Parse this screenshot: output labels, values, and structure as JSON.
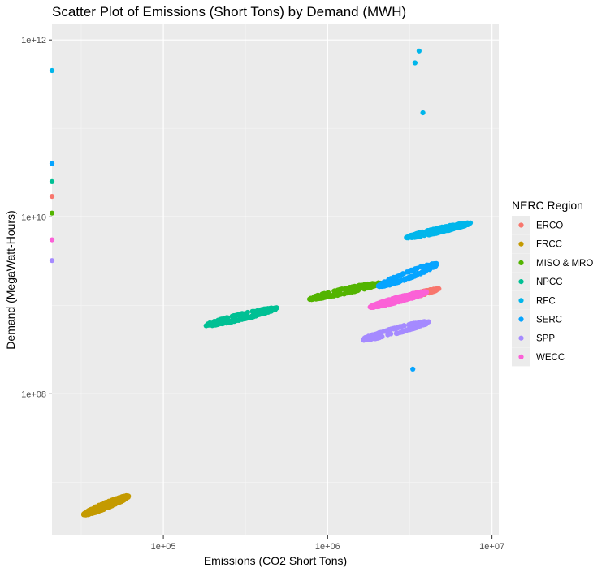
{
  "chart_data": {
    "type": "scatter",
    "title": "Scatter Plot of Emissions (Short Tons) by Demand (MWH)",
    "xlabel": "Emissions (CO2 Short Tons)",
    "ylabel": "Demand (MegaWatt-Hours)",
    "x_scale": "log10",
    "y_scale": "log10",
    "xlim": [
      21000,
      11000000
    ],
    "ylim": [
      2500000,
      1500000000000
    ],
    "x_ticks": [
      {
        "value": 100000,
        "label": "1e+05"
      },
      {
        "value": 1000000,
        "label": "1e+06"
      },
      {
        "value": 10000000,
        "label": "1e+07"
      }
    ],
    "y_ticks": [
      {
        "value": 100000000,
        "label": "1e+08"
      },
      {
        "value": 10000000000,
        "label": "1e+10"
      },
      {
        "value": 1000000000000,
        "label": "1e+12"
      }
    ],
    "grid": true,
    "legend": {
      "title": "NERC Region",
      "position": "right",
      "entries": [
        {
          "label": "ERCO",
          "color": "#F8766D"
        },
        {
          "label": "FRCC",
          "color": "#C49A00"
        },
        {
          "label": "MISO & MRO",
          "color": "#53B400"
        },
        {
          "label": "NPCC",
          "color": "#00C094"
        },
        {
          "label": "RFC",
          "color": "#00B6EB"
        },
        {
          "label": "SERC",
          "color": "#06A4FF"
        },
        {
          "label": "SPP",
          "color": "#A58AFF"
        },
        {
          "label": "WECC",
          "color": "#FB61D7"
        }
      ]
    },
    "series": [
      {
        "name": "ERCO",
        "color": "#F8766D",
        "clusters": [
          {
            "x_range": [
              2500000,
              5000000
            ],
            "y_range": [
              1100000000,
              1600000000
            ],
            "count": 150
          }
        ],
        "points": [
          [
            21000,
            17000000000
          ]
        ]
      },
      {
        "name": "FRCC",
        "color": "#C49A00",
        "clusters": [
          {
            "x_range": [
              31000,
              65000
            ],
            "y_range": [
              4000000,
              7500000
            ],
            "count": 250
          }
        ],
        "points": []
      },
      {
        "name": "MISO & MRO",
        "color": "#53B400",
        "clusters": [
          {
            "x_range": [
              700000,
              2300000
            ],
            "y_range": [
              1100000000,
              1900000000
            ],
            "count": 220
          }
        ],
        "points": [
          [
            21000,
            11000000000
          ]
        ]
      },
      {
        "name": "NPCC",
        "color": "#00C094",
        "clusters": [
          {
            "x_range": [
              165000,
              540000
            ],
            "y_range": [
              550000000,
              1000000000
            ],
            "count": 220
          }
        ],
        "points": [
          [
            21000,
            25000000000
          ]
        ]
      },
      {
        "name": "RFC",
        "color": "#00B6EB",
        "clusters": [
          {
            "x_range": [
              2800000,
              8000000
            ],
            "y_range": [
              5500000000,
              9000000000
            ],
            "count": 220
          }
        ],
        "points": [
          [
            21000,
            450000000000
          ],
          [
            3600000,
            750000000000
          ],
          [
            3400000,
            550000000000
          ],
          [
            3800000,
            150000000000
          ]
        ]
      },
      {
        "name": "SERC",
        "color": "#06A4FF",
        "clusters": [
          {
            "x_range": [
              1900000,
              5000000
            ],
            "y_range": [
              1500000000,
              3200000000
            ],
            "count": 200
          }
        ],
        "points": [
          [
            21000,
            40000000000
          ],
          [
            3300000,
            190000000
          ]
        ]
      },
      {
        "name": "SPP",
        "color": "#A58AFF",
        "clusters": [
          {
            "x_range": [
              1500000,
              4500000
            ],
            "y_range": [
              380000000,
              700000000
            ],
            "count": 200
          }
        ],
        "points": [
          [
            21000,
            3200000000
          ]
        ]
      },
      {
        "name": "WECC",
        "color": "#FB61D7",
        "clusters": [
          {
            "x_range": [
              1700000,
              4300000
            ],
            "y_range": [
              900000000,
              1500000000
            ],
            "count": 260
          }
        ],
        "points": [
          [
            21000,
            5500000000
          ]
        ]
      }
    ]
  }
}
